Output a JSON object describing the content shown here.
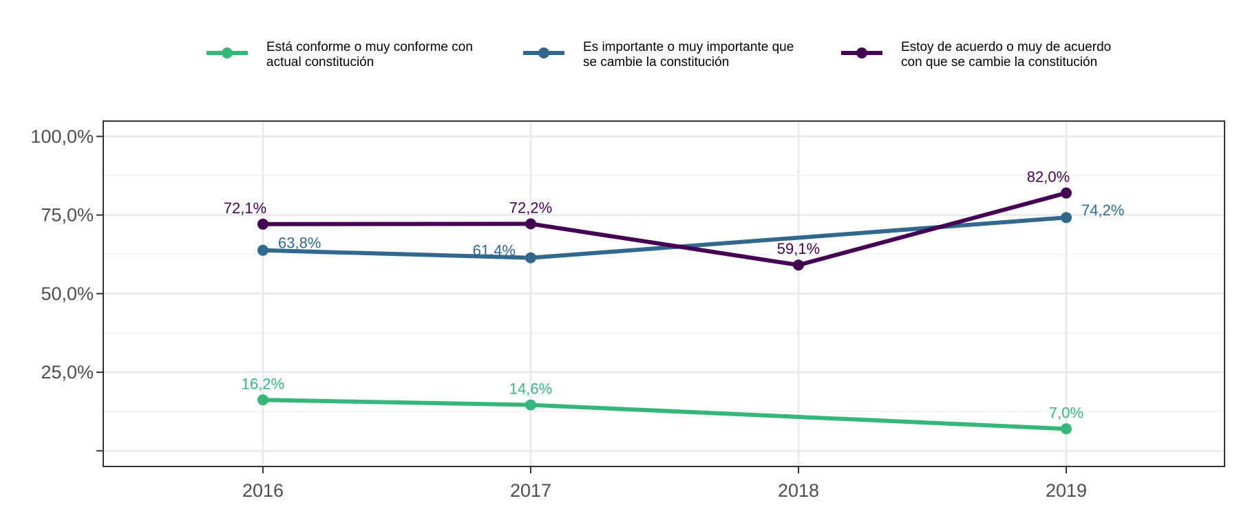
{
  "chart_data": {
    "type": "line",
    "x": [
      "2016",
      "2017",
      "2018",
      "2019"
    ],
    "ylim": [
      0,
      100
    ],
    "y_ticks": [
      "25,0%",
      "50,0%",
      "75,0%",
      "100,0%"
    ],
    "grid": true,
    "legend_position": "top",
    "series": [
      {
        "name_lines": [
          "Está conforme o muy conforme con",
          "actual constitución"
        ],
        "color": "#35b779",
        "values": [
          16.2,
          14.6,
          null,
          7.0
        ],
        "labels": [
          "16,2%",
          "14,6%",
          null,
          "7,0%"
        ],
        "line_values": [
          16.2,
          14.6,
          10.8,
          7.0
        ]
      },
      {
        "name_lines": [
          "Es importante o muy importante que",
          "se cambie la constitución"
        ],
        "color": "#31688e",
        "values": [
          63.8,
          61.4,
          null,
          74.2
        ],
        "labels": [
          "63,8%",
          "61,4%",
          null,
          "74,2%"
        ],
        "line_values": [
          63.8,
          61.4,
          67.8,
          74.2
        ]
      },
      {
        "name_lines": [
          "Estoy de acuerdo o muy de acuerdo",
          "con que se cambie la constitución"
        ],
        "color": "#440154",
        "values": [
          72.1,
          72.2,
          59.1,
          82.0
        ],
        "labels": [
          "72,1%",
          "72,2%",
          "59,1%",
          "82,0%"
        ],
        "line_values": [
          72.1,
          72.2,
          59.1,
          82.0
        ]
      }
    ]
  }
}
